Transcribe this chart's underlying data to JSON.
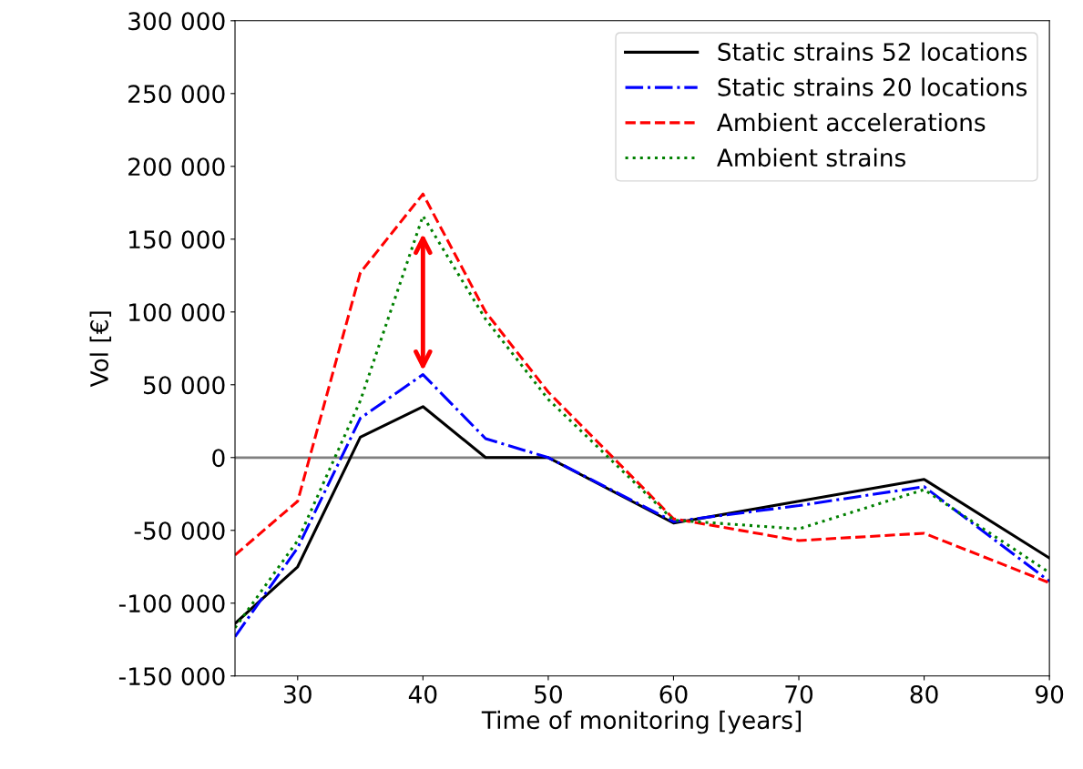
{
  "chart_data": {
    "type": "line",
    "xlabel": "Time of monitoring [years]",
    "ylabel": "Vol [€]",
    "x": [
      25,
      30,
      35,
      40,
      45,
      50,
      60,
      70,
      80,
      90
    ],
    "series": [
      {
        "name": "Static strains 52 locations",
        "color": "#000000",
        "line_style": "solid",
        "values": [
          -114000,
          -75000,
          14000,
          35000,
          0,
          0,
          -45000,
          -30000,
          -15000,
          -69000
        ]
      },
      {
        "name": "Static strains 20 locations",
        "color": "#0000ff",
        "line_style": "dashdot",
        "values": [
          -123000,
          -62000,
          27000,
          57000,
          13000,
          0,
          -44000,
          -33000,
          -20000,
          -85000
        ]
      },
      {
        "name": "Ambient accelerations",
        "color": "#ff0000",
        "line_style": "dashed",
        "values": [
          -67000,
          -30000,
          127000,
          181000,
          100000,
          45000,
          -42000,
          -57000,
          -52000,
          -86000
        ]
      },
      {
        "name": "Ambient strains",
        "color": "#008000",
        "line_style": "dotted",
        "values": [
          -117000,
          -57000,
          39000,
          166000,
          95000,
          40000,
          -43000,
          -49000,
          -22000,
          -79000
        ]
      }
    ],
    "xlim": [
      25,
      90
    ],
    "xticks": [
      30,
      40,
      50,
      60,
      70,
      80,
      90
    ],
    "ylim": [
      -150000,
      300000
    ],
    "yticks": [
      {
        "value": -150000,
        "label": "-150 000"
      },
      {
        "value": -100000,
        "label": "-100 000"
      },
      {
        "value": -50000,
        "label": "-50 000"
      },
      {
        "value": 0,
        "label": "0"
      },
      {
        "value": 50000,
        "label": "50 000"
      },
      {
        "value": 100000,
        "label": "100 000"
      },
      {
        "value": 150000,
        "label": "150 000"
      },
      {
        "value": 200000,
        "label": "200 000"
      },
      {
        "value": 250000,
        "label": "250 000"
      },
      {
        "value": 300000,
        "label": "300 000"
      }
    ],
    "ref_lines": [
      {
        "axis": "y",
        "value": 0,
        "color": "#808080"
      }
    ],
    "grid": false,
    "legend": "top right",
    "marker": "none"
  }
}
